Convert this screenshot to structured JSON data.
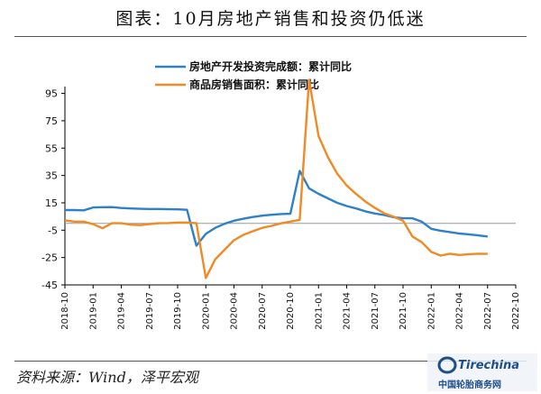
{
  "title": "图表：10月房地产销售和投资仍低迷",
  "source": "资料来源：Wind，泽平宏观",
  "watermark": {
    "brand": "Tirechina",
    "text_cn": "中国轮胎商务网"
  },
  "colors": {
    "investment": "#2e80c8",
    "sales": "#f08a24",
    "zero_line": "#999999",
    "axis": "#000000"
  },
  "chart_data": {
    "type": "line",
    "title": "",
    "xlabel": "",
    "ylabel": "",
    "ylim": [
      -45,
      100
    ],
    "yticks": [
      95,
      75,
      55,
      35,
      15,
      -5,
      -25,
      -45
    ],
    "grid": false,
    "legend_position": "top-center",
    "x_tick_labels": [
      "2018-10",
      "2019-01",
      "2019-04",
      "2019-07",
      "2019-10",
      "2020-01",
      "2020-04",
      "2020-07",
      "2020-10",
      "2021-01",
      "2021-04",
      "2021-07",
      "2021-10",
      "2022-01",
      "2022-04",
      "2022-07",
      "2022-10"
    ],
    "x_start": "2018-10",
    "series": [
      {
        "name": "房地产开发投资完成额：累计同比",
        "color": "#2e80c8",
        "values": [
          9.7,
          9.7,
          9.5,
          11.6,
          11.8,
          11.9,
          11.2,
          10.9,
          10.6,
          10.5,
          10.5,
          10.3,
          10.2,
          9.9,
          -16.3,
          -7.7,
          -3.3,
          -0.3,
          1.9,
          3.4,
          4.6,
          5.6,
          6.3,
          6.8,
          7.0,
          38.3,
          25.6,
          21.6,
          18.3,
          15.0,
          12.7,
          10.9,
          8.8,
          7.2,
          6.1,
          4.4,
          3.7,
          3.7,
          1.2,
          -4.0,
          -5.4,
          -6.4,
          -7.4,
          -8.0,
          -8.8,
          -9.6
        ],
        "x_offset": 0
      },
      {
        "name": "商品房销售面积：累计同比",
        "color": "#f08a24",
        "values": [
          2.2,
          1.3,
          1.3,
          -0.6,
          -3.6,
          0.1,
          0.1,
          -1.0,
          -1.3,
          -0.5,
          0.1,
          0.2,
          0.6,
          0.6,
          0.1,
          -39.9,
          -26.3,
          -19.3,
          -12.3,
          -8.4,
          -5.8,
          -3.3,
          -1.8,
          0.0,
          1.3,
          2.6,
          104.9,
          63.8,
          48.3,
          36.2,
          27.7,
          21.5,
          15.9,
          11.3,
          7.3,
          4.8,
          1.9,
          -9.6,
          -13.8,
          -20.9,
          -23.6,
          -22.2,
          -23.1,
          -22.5,
          -22.2,
          -22.3
        ],
        "x_offset": 0
      }
    ]
  }
}
